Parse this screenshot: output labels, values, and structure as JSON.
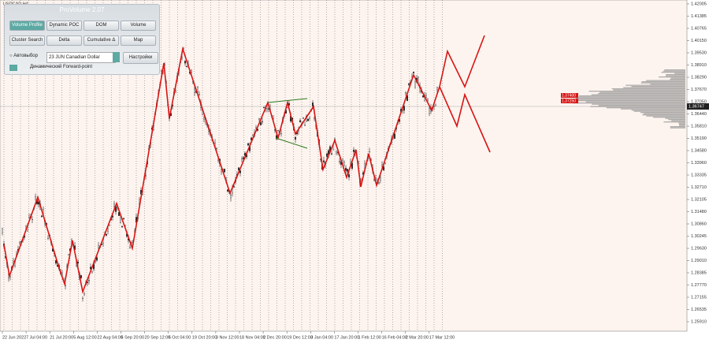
{
  "window": {
    "symbol": "USDCAD,H4",
    "price_axis": [
      "1.42005",
      "1.41385",
      "1.40765",
      "1.40150",
      "1.39530",
      "1.38910",
      "1.38290",
      "1.37670",
      "1.37050",
      "1.36440",
      "1.35810",
      "1.35190",
      "1.34580",
      "1.33960",
      "1.33335",
      "1.32710",
      "1.32105",
      "1.31480",
      "1.30860",
      "1.30245",
      "1.29630",
      "1.29010",
      "1.28385",
      "1.27770",
      "1.27155",
      "1.26535",
      "1.25910"
    ],
    "current_price": "1.36747",
    "profile_labels": [
      "1.37400",
      "1.37250"
    ],
    "time_axis": [
      "22 Jun 2022",
      "7 Jul 04:00",
      "21 Jul 20:00",
      "5 Aug 12:00",
      "22 Aug 04:00",
      "5 Sep 20:00",
      "20 Sep 12:00",
      "5 Oct 04:00",
      "19 Oct 20:00",
      "3 Nov 12:00",
      "18 Nov 04:00",
      "2 Dec 20:00",
      "19 Dec 12:00",
      "3 Jan 04:00",
      "17 Jan 20:00",
      "1 Feb 12:00",
      "16 Feb 04:00",
      "2 Mar 20:00",
      "17 Mar 12:00"
    ]
  },
  "panel": {
    "title": "ProVolume 2.07",
    "buttons": [
      "Volume Profile",
      "Dynamic POC",
      "DOM",
      "Volume",
      "Cluster Search",
      "Delta",
      "Cumulative Δ",
      "Map"
    ],
    "auto_label": "Автовыбор",
    "instrument": "23 JUN Canadian Dollar",
    "settings": "Настройки",
    "forward_point": "Динамический Forward-point"
  }
}
